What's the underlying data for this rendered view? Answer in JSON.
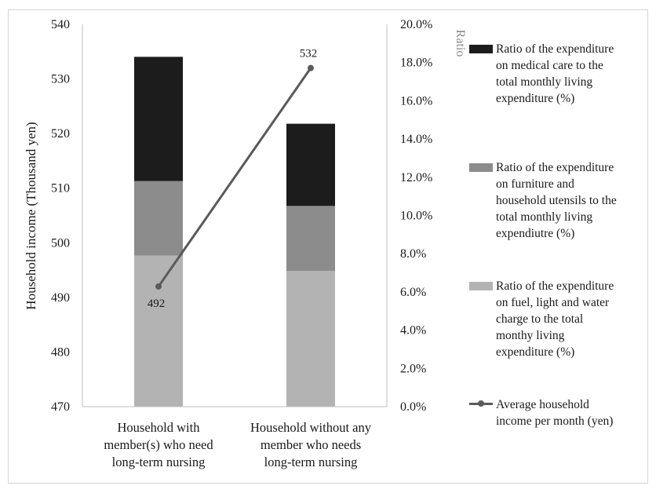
{
  "chart_data": {
    "type": "bar",
    "stacked": true,
    "categories": [
      "Household with member(s) who need long-term nursing",
      "Household without any member who needs long-term nursing"
    ],
    "category_lines": [
      [
        "Household with",
        "member(s) who need",
        "long-term nursing"
      ],
      [
        "Household without any",
        "member who needs",
        "long-term nursing"
      ]
    ],
    "ylabel": "Household income (Thousand yen)",
    "y2label": "Ratio",
    "ylim": [
      470,
      540
    ],
    "y_ticks": [
      "470",
      "480",
      "490",
      "500",
      "510",
      "520",
      "530",
      "540"
    ],
    "y2lim": [
      0,
      20
    ],
    "y2_ticks": [
      "0.0%",
      "2.0%",
      "4.0%",
      "6.0%",
      "8.0%",
      "10.0%",
      "12.0%",
      "14.0%",
      "16.0%",
      "18.0%",
      "20.0%"
    ],
    "series": [
      {
        "name": "Ratio of the expenditure on fuel, light and water charge to the total monthy living expenditure (%)",
        "legend_lines": [
          "Ratio of the expenditure",
          "on fuel, light and water",
          "charge to the total",
          "monthy living",
          "expenditure (%)"
        ],
        "color": "#b3b3b3",
        "axis": "right",
        "values": [
          7.9,
          7.1
        ]
      },
      {
        "name": "Ratio of the expenditure on furniture and household utensils to the total monthly living expendiutre (%)",
        "legend_lines": [
          "Ratio of the expenditure",
          "on furniture and",
          "household utensils to the",
          "total monthly living",
          "expendiutre (%)"
        ],
        "color": "#8c8c8c",
        "axis": "right",
        "values": [
          3.9,
          3.4
        ]
      },
      {
        "name": "Ratio of the expenditure on medical care to the total monthly living expenditure (%)",
        "legend_lines": [
          "Ratio of the expenditure",
          "on medical care to the",
          "total monthly living",
          "expenditure (%)"
        ],
        "color": "#1c1c1c",
        "axis": "right",
        "values": [
          6.5,
          4.3
        ]
      }
    ],
    "line_series": {
      "name": "Average household income per month (yen)",
      "legend_lines": [
        "Average household",
        "income per month (yen)"
      ],
      "color": "#5a5a5a",
      "axis": "left",
      "values": [
        492,
        532
      ],
      "labels": [
        "492",
        "532"
      ]
    },
    "legend_position": "right",
    "grid": false
  }
}
